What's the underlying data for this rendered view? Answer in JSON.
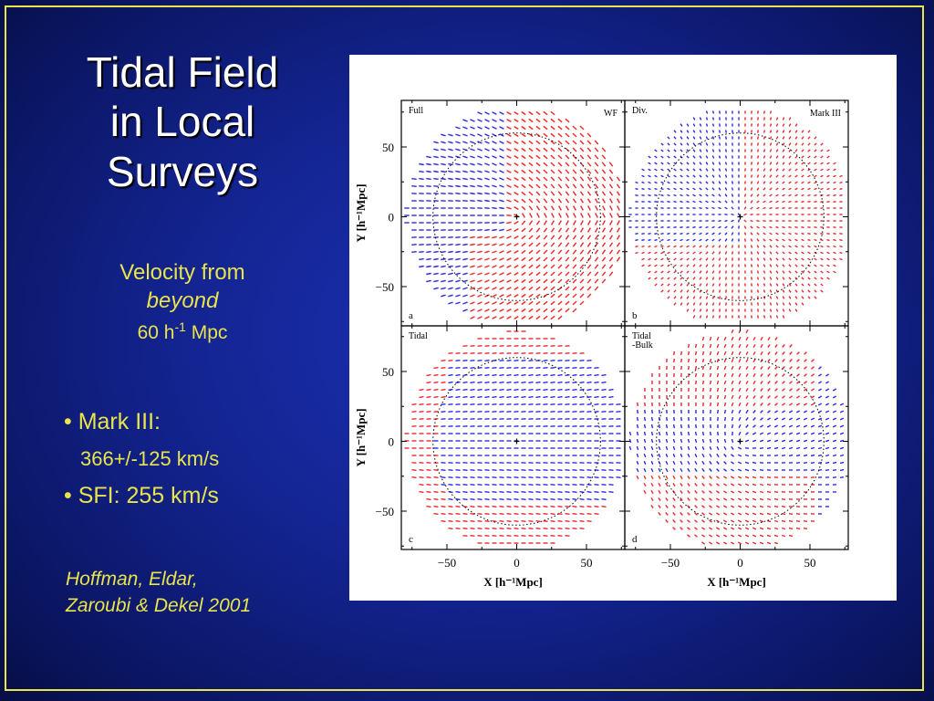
{
  "slide": {
    "title_lines": [
      "Tidal Field",
      "in Local",
      "Surveys"
    ],
    "subtitle": {
      "line1": "Velocity from",
      "line2": "beyond",
      "line3_base": "60 h",
      "line3_sup": "-1",
      "line3_tail": " Mpc"
    },
    "bullets": {
      "b1": "• Mark III:",
      "b1_value": "366+/-125 km/s",
      "b2": "• SFI:  255 km/s"
    },
    "citation": [
      "Hoffman, Eldar,",
      "Zaroubi & Dekel 2001"
    ],
    "colors": {
      "background": "#13238f",
      "border": "#e8e44a",
      "accent_text": "#e8e44a",
      "title_text": "#ffffff"
    }
  },
  "figure": {
    "panels": [
      {
        "letter": "a",
        "label_left": [
          "Full"
        ],
        "label_right": "WF"
      },
      {
        "letter": "b",
        "label_left": [
          "Div."
        ],
        "label_right": "Mark III"
      },
      {
        "letter": "c",
        "label_left": [
          "Tidal"
        ],
        "label_right": ""
      },
      {
        "letter": "d",
        "label_left": [
          "Tidal",
          "-Bulk"
        ],
        "label_right": ""
      }
    ],
    "y_ticks": [
      "50",
      "0",
      "−50"
    ],
    "x_ticks": [
      "−50",
      "0",
      "50"
    ],
    "y_label": "Y [h⁻¹Mpc]",
    "x_label": "X [h⁻¹Mpc]",
    "colors": {
      "positive": "#e8282a",
      "negative": "#2a2ae0"
    }
  }
}
